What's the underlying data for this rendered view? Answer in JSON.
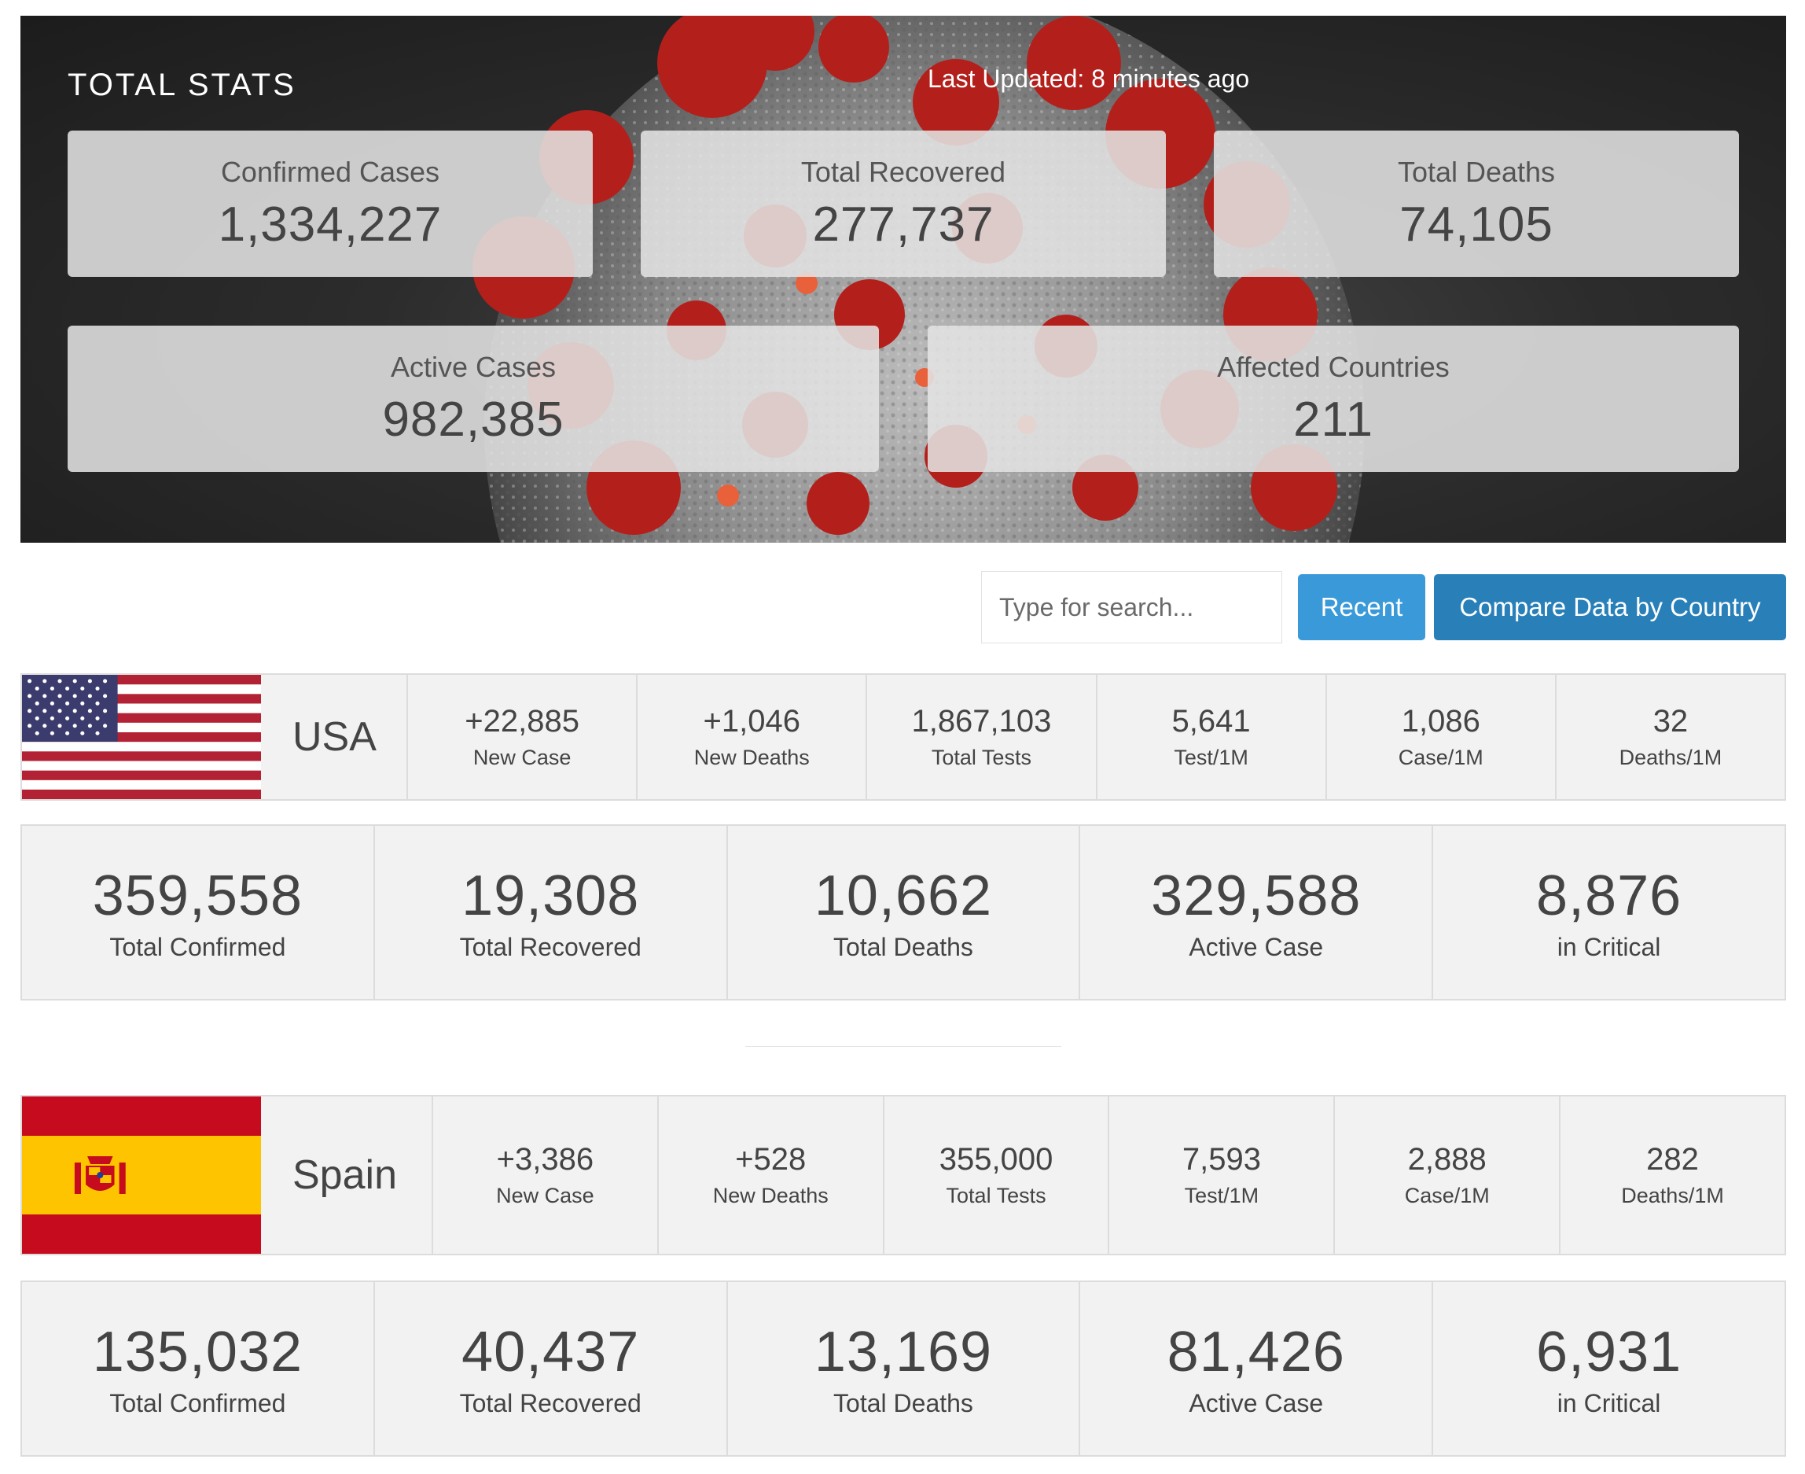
{
  "hero": {
    "title": "TOTAL STATS",
    "last_updated": "Last Updated: 8 minutes ago",
    "stats": [
      {
        "label": "Confirmed Cases",
        "value": "1,334,227"
      },
      {
        "label": "Total Recovered",
        "value": "277,737"
      },
      {
        "label": "Total Deaths",
        "value": "74,105"
      },
      {
        "label": "Active Cases",
        "value": "982,385"
      },
      {
        "label": "Affected Countries",
        "value": "211"
      }
    ]
  },
  "toolbar": {
    "search_placeholder": "Type for search...",
    "recent_label": "Recent",
    "compare_label": "Compare Data by Country"
  },
  "countries": [
    {
      "name": "USA",
      "flag_icon": "usa-flag",
      "summary": [
        {
          "value": "+22,885",
          "label": "New Case"
        },
        {
          "value": "+1,046",
          "label": "New Deaths"
        },
        {
          "value": "1,867,103",
          "label": "Total Tests"
        },
        {
          "value": "5,641",
          "label": "Test/1M"
        },
        {
          "value": "1,086",
          "label": "Case/1M"
        },
        {
          "value": "32",
          "label": "Deaths/1M"
        }
      ],
      "totals": [
        {
          "value": "359,558",
          "label": "Total Confirmed"
        },
        {
          "value": "19,308",
          "label": "Total Recovered"
        },
        {
          "value": "10,662",
          "label": "Total Deaths"
        },
        {
          "value": "329,588",
          "label": "Active Case"
        },
        {
          "value": "8,876",
          "label": "in Critical"
        }
      ]
    },
    {
      "name": "Spain",
      "flag_icon": "spain-flag",
      "summary": [
        {
          "value": "+3,386",
          "label": "New Case"
        },
        {
          "value": "+528",
          "label": "New Deaths"
        },
        {
          "value": "355,000",
          "label": "Total Tests"
        },
        {
          "value": "7,593",
          "label": "Test/1M"
        },
        {
          "value": "2,888",
          "label": "Case/1M"
        },
        {
          "value": "282",
          "label": "Deaths/1M"
        }
      ],
      "totals": [
        {
          "value": "135,032",
          "label": "Total Confirmed"
        },
        {
          "value": "40,437",
          "label": "Total Recovered"
        },
        {
          "value": "13,169",
          "label": "Total Deaths"
        },
        {
          "value": "81,426",
          "label": "Active Case"
        },
        {
          "value": "6,931",
          "label": "in Critical"
        }
      ]
    }
  ],
  "colors": {
    "button_recent": "#3a9ad9",
    "button_compare": "#2980b9",
    "virus_red": "#b3201c",
    "panel_gray": "#f2f2f2"
  }
}
